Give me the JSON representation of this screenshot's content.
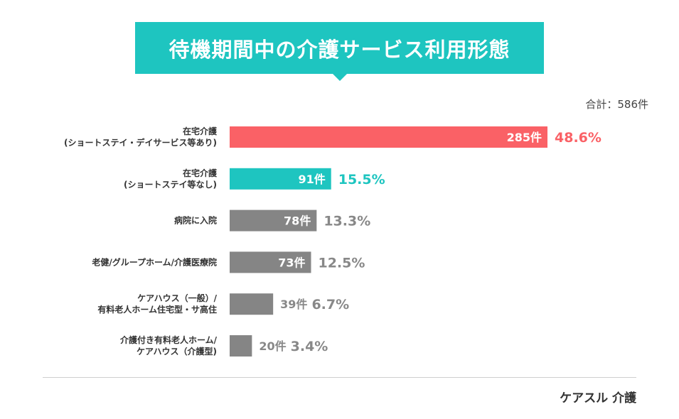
{
  "chart_data": {
    "type": "bar",
    "orientation": "horizontal",
    "title": "待機期間中の介護サービス利用形態",
    "total_label": "合計：586件",
    "categories": [
      [
        "在宅介護",
        "(ショートステイ・デイサービス等あり)"
      ],
      [
        "在宅介護",
        "(ショートステイ等なし)"
      ],
      [
        "病院に入院"
      ],
      [
        "老健/グループホーム/介護医療院"
      ],
      [
        "ケアハウス（一般）/",
        "有料老人ホーム住宅型・サ高住"
      ],
      [
        "介護付き有料老人ホーム/",
        "ケアハウス（介護型)"
      ]
    ],
    "values": [
      285,
      91,
      78,
      73,
      39,
      20
    ],
    "count_labels": [
      "285件",
      "91件",
      "78件",
      "73件",
      "39件",
      "20件"
    ],
    "percent_labels": [
      "48.6%",
      "15.5%",
      "13.3%",
      "12.5%",
      "6.7%",
      "3.4%"
    ],
    "colors": [
      "#fa6166",
      "#1ec5c0",
      "#858585",
      "#858585",
      "#858585",
      "#858585"
    ]
  },
  "brand": "ケアスル 介護"
}
